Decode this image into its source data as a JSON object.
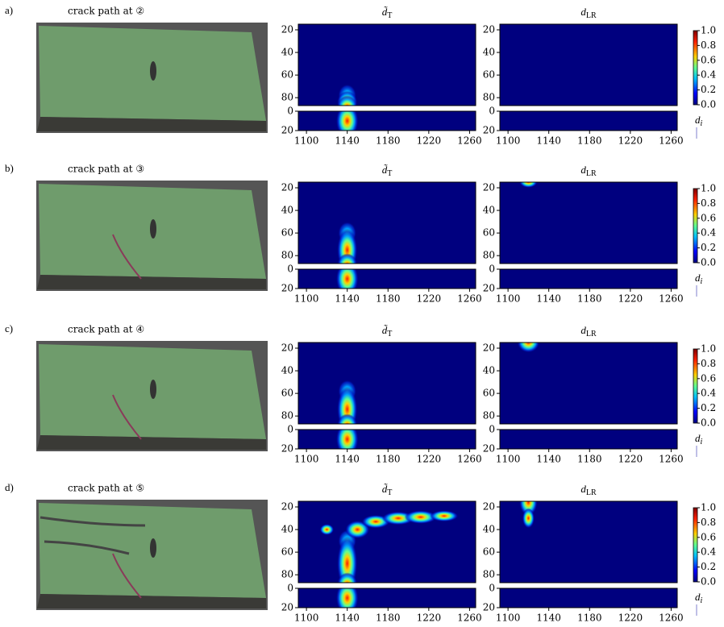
{
  "figure": {
    "rows": [
      {
        "label": "a)",
        "photo_title": "crack path at ②"
      },
      {
        "label": "b)",
        "photo_title": "crack path at ③"
      },
      {
        "label": "c)",
        "photo_title": "crack path at ④"
      },
      {
        "label": "d)",
        "photo_title": "crack path at ⑤"
      }
    ],
    "panel_titles": [
      {
        "main": "d̃",
        "sub": "T"
      },
      {
        "main": "d",
        "sub": "LR"
      }
    ],
    "axes": {
      "xlim": [
        1092,
        1266
      ],
      "xticks": [
        1100,
        1140,
        1180,
        1220,
        1260
      ],
      "top_ylim": [
        15,
        87
      ],
      "top_yticks": [
        20,
        40,
        60,
        80
      ],
      "bottom_ylim": [
        0,
        20
      ],
      "bottom_yticks": [
        0,
        20
      ]
    },
    "colorbar": {
      "lim": [
        0,
        1
      ],
      "ticks": [
        {
          "value": 0,
          "label": "0.0"
        },
        {
          "value": 0.2,
          "label": "0.2"
        },
        {
          "value": 0.4,
          "label": "0.4"
        },
        {
          "value": 0.6,
          "label": "0.6"
        },
        {
          "value": 0.8,
          "label": "0.8"
        },
        {
          "value": 1,
          "label": "1.0"
        }
      ],
      "label": {
        "main": "d",
        "sub": "i"
      }
    }
  }
}
